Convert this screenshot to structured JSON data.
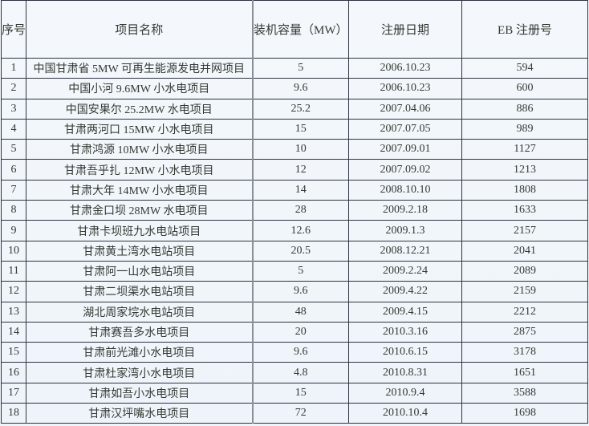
{
  "table": {
    "headers": [
      "序号",
      "项目名称",
      "装机容量（MW）",
      "注册日期",
      "EB 注册号"
    ],
    "rows": [
      [
        "1",
        "中国甘肃省 5MW 可再生能源发电并网项目",
        "5",
        "2006.10.23",
        "594"
      ],
      [
        "2",
        "中国小河 9.6MW  小水电项目",
        "9.6",
        "2006.10.23",
        "600"
      ],
      [
        "3",
        "中国安果尔 25.2MW  水电项目",
        "25.2",
        "2007.04.06",
        "886"
      ],
      [
        "4",
        "甘肃两河口 15MW  小水电项目",
        "15",
        "2007.07.05",
        "989"
      ],
      [
        "5",
        "甘肃鸿源 10MW  小水电项目",
        "10",
        "2007.09.01",
        "1127"
      ],
      [
        "6",
        "甘肃吾乎扎 12MW  小水电项目",
        "12",
        "2007.09.02",
        "1213"
      ],
      [
        "7",
        "甘肃大年 14MW  小水电项目",
        "14",
        "2008.10.10",
        "1808"
      ],
      [
        "8",
        "甘肃金口坝 28MW  水电项目",
        "28",
        "2009.2.18",
        "1633"
      ],
      [
        "9",
        "甘肃卡坝班九水电站项目",
        "12.6",
        "2009.1.3",
        "2157"
      ],
      [
        "10",
        "甘肃黄土湾水电站项目",
        "20.5",
        "2008.12.21",
        "2041"
      ],
      [
        "11",
        "甘肃阿一山水电站项目",
        "5",
        "2009.2.24",
        "2089"
      ],
      [
        "12",
        "甘肃二坝渠水电站项目",
        "9.6",
        "2009.4.22",
        "2159"
      ],
      [
        "13",
        "湖北周家垸水电站项目",
        "48",
        "2009.4.15",
        "2212"
      ],
      [
        "14",
        "甘肃赛吾多水电项目",
        "20",
        "2010.3.16",
        "2875"
      ],
      [
        "15",
        "甘肃前光滩小水电项目",
        "9.6",
        "2010.6.15",
        "3178"
      ],
      [
        "16",
        "甘肃杜家湾小水电项目",
        "4.8",
        "2010.8.31",
        "1651"
      ],
      [
        "17",
        "甘肃如吾小水电项目",
        "15",
        "2010.9.4",
        "3588"
      ],
      [
        "18",
        "甘肃汉坪嘴水电项目",
        "72",
        "2010.10.4",
        "1698"
      ]
    ]
  }
}
